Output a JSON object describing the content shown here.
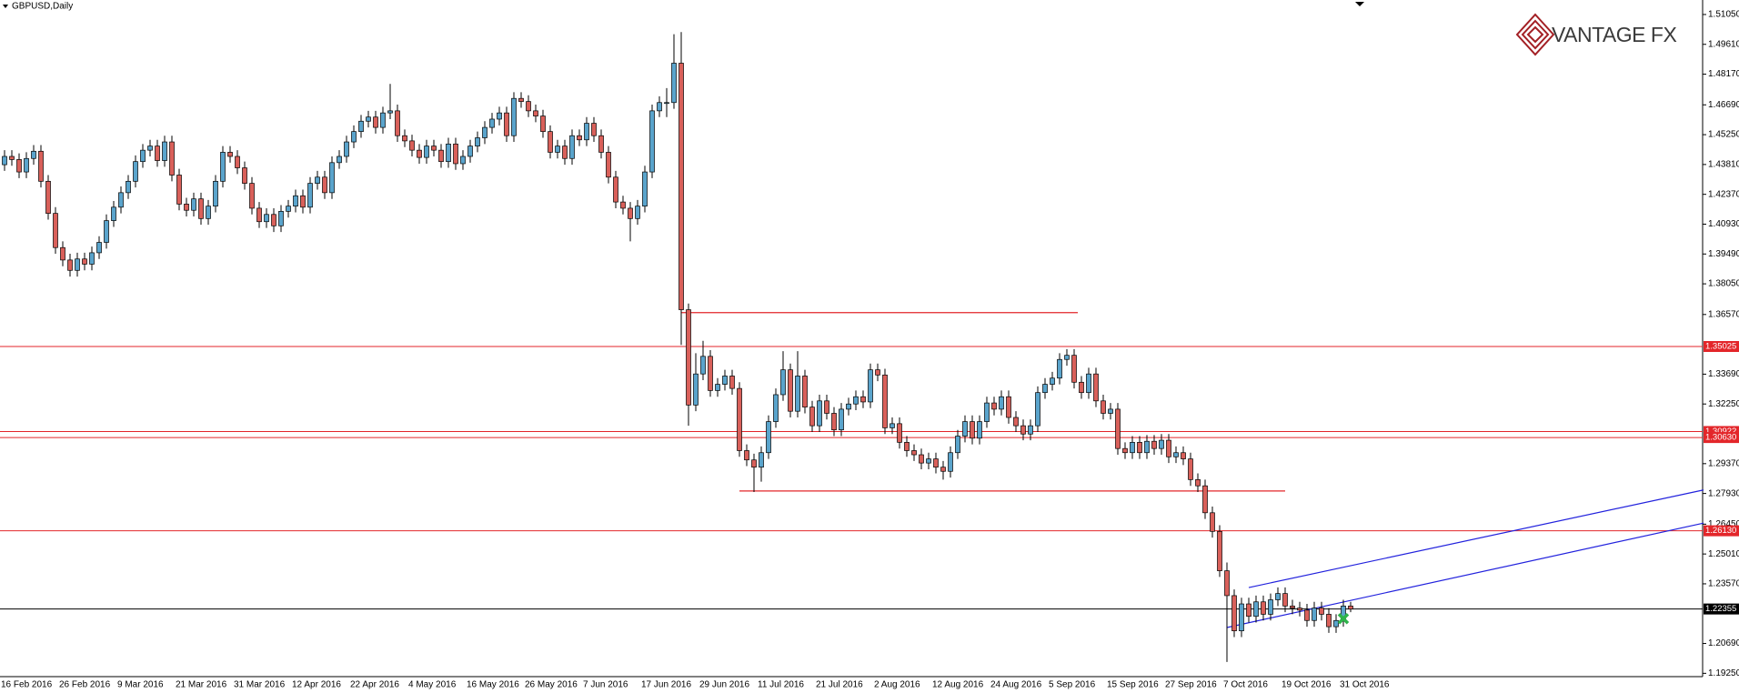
{
  "chart_data": {
    "type": "candlestick",
    "title": "GBPUSD,Daily",
    "brand": "VANTAGE FX",
    "categories": [
      "16 Feb 2016",
      null,
      null,
      null,
      null,
      null,
      null,
      null,
      "26 Feb 2016",
      null,
      null,
      null,
      null,
      null,
      null,
      null,
      "9 Mar 2016",
      null,
      null,
      null,
      null,
      null,
      null,
      null,
      "21 Mar 2016",
      null,
      null,
      null,
      null,
      null,
      null,
      null,
      "31 Mar 2016",
      null,
      null,
      null,
      null,
      null,
      null,
      null,
      "12 Apr 2016",
      null,
      null,
      null,
      null,
      null,
      null,
      null,
      "22 Apr 2016",
      null,
      null,
      null,
      null,
      null,
      null,
      null,
      "4 May 2016",
      null,
      null,
      null,
      null,
      null,
      null,
      null,
      "16 May 2016",
      null,
      null,
      null,
      null,
      null,
      null,
      null,
      "26 May 2016",
      null,
      null,
      null,
      null,
      null,
      null,
      null,
      "7 Jun 2016",
      null,
      null,
      null,
      null,
      null,
      null,
      null,
      "17 Jun 2016",
      null,
      null,
      null,
      null,
      null,
      null,
      null,
      "29 Jun 2016",
      null,
      null,
      null,
      null,
      null,
      null,
      null,
      "11 Jul 2016",
      null,
      null,
      null,
      null,
      null,
      null,
      null,
      "21 Jul 2016",
      null,
      null,
      null,
      null,
      null,
      null,
      null,
      "2 Aug 2016",
      null,
      null,
      null,
      null,
      null,
      null,
      null,
      "12 Aug 2016",
      null,
      null,
      null,
      null,
      null,
      null,
      null,
      "24 Aug 2016",
      null,
      null,
      null,
      null,
      null,
      null,
      null,
      "5 Sep 2016",
      null,
      null,
      null,
      null,
      null,
      null,
      null,
      "15 Sep 2016",
      null,
      null,
      null,
      null,
      null,
      null,
      null,
      "27 Sep 2016",
      null,
      null,
      null,
      null,
      null,
      null,
      null,
      "7 Oct 2016",
      null,
      null,
      null,
      null,
      null,
      null,
      null,
      "19 Oct 2016",
      null,
      null,
      null,
      null,
      null,
      null,
      null,
      "31 Oct 2016",
      null
    ],
    "open": [
      1.438,
      1.442,
      1.4405,
      1.4345,
      1.441,
      1.4445,
      1.43,
      1.4145,
      1.398,
      1.392,
      1.387,
      1.3925,
      1.39,
      1.3955,
      1.4005,
      1.411,
      1.4175,
      1.4245,
      1.43,
      1.4395,
      1.445,
      1.447,
      1.44,
      1.449,
      1.433,
      1.419,
      1.416,
      1.4215,
      1.412,
      1.418,
      1.43,
      1.444,
      1.442,
      1.4365,
      1.429,
      1.417,
      1.4105,
      1.414,
      1.4085,
      1.4155,
      1.418,
      1.423,
      1.4175,
      1.429,
      1.432,
      1.4245,
      1.439,
      1.442,
      1.449,
      1.454,
      1.459,
      1.461,
      1.456,
      1.463,
      1.464,
      1.452,
      1.4495,
      1.445,
      1.4415,
      1.447,
      1.445,
      1.4395,
      1.448,
      1.4385,
      1.442,
      1.447,
      1.451,
      1.456,
      1.46,
      1.463,
      1.452,
      1.47,
      1.4685,
      1.464,
      1.4615,
      1.454,
      1.444,
      1.447,
      1.441,
      1.452,
      1.45,
      1.458,
      1.452,
      1.444,
      1.432,
      1.42,
      1.417,
      1.412,
      1.418,
      1.4345,
      1.464,
      1.468,
      1.468,
      1.487,
      1.368,
      1.322,
      1.337,
      1.3455,
      1.329,
      1.332,
      1.336,
      1.33,
      1.3,
      1.2955,
      1.292,
      1.299,
      1.314,
      1.327,
      1.339,
      1.319,
      1.336,
      1.321,
      1.312,
      1.324,
      1.318,
      1.31,
      1.32,
      1.3225,
      1.326,
      1.3235,
      1.339,
      1.3365,
      1.311,
      1.313,
      1.304,
      1.3,
      1.298,
      1.294,
      1.296,
      1.292,
      1.29,
      1.299,
      1.307,
      1.314,
      1.306,
      1.314,
      1.323,
      1.32,
      1.326,
      1.316,
      1.312,
      1.308,
      1.312,
      1.328,
      1.332,
      1.335,
      1.344,
      1.346,
      1.333,
      1.328,
      1.337,
      1.324,
      1.318,
      1.32,
      1.301,
      1.299,
      1.304,
      1.299,
      1.3045,
      1.301,
      1.305,
      1.297,
      1.299,
      1.296,
      1.286,
      1.283,
      1.27,
      1.261,
      1.242,
      1.23,
      1.213,
      1.226,
      1.22,
      1.227,
      1.221,
      1.228,
      1.231,
      1.225,
      1.224,
      1.223,
      1.218,
      1.224,
      1.221,
      1.215,
      1.218,
      1.225
    ],
    "high": [
      1.445,
      1.445,
      1.4435,
      1.444,
      1.4475,
      1.4475,
      1.433,
      1.4175,
      1.401,
      1.395,
      1.3955,
      1.3955,
      1.3985,
      1.4035,
      1.414,
      1.4205,
      1.4275,
      1.433,
      1.4425,
      1.448,
      1.45,
      1.45,
      1.452,
      1.452,
      1.436,
      1.422,
      1.4245,
      1.4245,
      1.421,
      1.433,
      1.447,
      1.447,
      1.445,
      1.4395,
      1.432,
      1.42,
      1.417,
      1.417,
      1.4185,
      1.421,
      1.426,
      1.426,
      1.432,
      1.435,
      1.435,
      1.442,
      1.445,
      1.452,
      1.457,
      1.462,
      1.464,
      1.464,
      1.466,
      1.477,
      1.467,
      1.455,
      1.4525,
      1.448,
      1.45,
      1.45,
      1.448,
      1.451,
      1.451,
      1.445,
      1.45,
      1.454,
      1.459,
      1.463,
      1.466,
      1.466,
      1.473,
      1.473,
      1.4715,
      1.467,
      1.4645,
      1.457,
      1.45,
      1.45,
      1.455,
      1.455,
      1.461,
      1.461,
      1.455,
      1.447,
      1.435,
      1.423,
      1.42,
      1.421,
      1.4375,
      1.467,
      1.471,
      1.475,
      1.501,
      1.502,
      1.371,
      1.347,
      1.353,
      1.3485,
      1.335,
      1.339,
      1.339,
      1.333,
      1.303,
      1.2985,
      1.302,
      1.317,
      1.33,
      1.348,
      1.342,
      1.348,
      1.339,
      1.324,
      1.327,
      1.327,
      1.321,
      1.323,
      1.3255,
      1.329,
      1.329,
      1.342,
      1.342,
      1.3395,
      1.316,
      1.316,
      1.307,
      1.303,
      1.301,
      1.299,
      1.299,
      1.295,
      1.302,
      1.31,
      1.317,
      1.317,
      1.317,
      1.326,
      1.326,
      1.329,
      1.329,
      1.319,
      1.315,
      1.315,
      1.331,
      1.335,
      1.338,
      1.347,
      1.349,
      1.349,
      1.336,
      1.34,
      1.34,
      1.327,
      1.323,
      1.323,
      1.304,
      1.307,
      1.307,
      1.3075,
      1.3075,
      1.308,
      1.308,
      1.302,
      1.302,
      1.299,
      1.289,
      1.286,
      1.273,
      1.264,
      1.246,
      1.233,
      1.229,
      1.229,
      1.23,
      1.23,
      1.231,
      1.234,
      1.234,
      1.228,
      1.227,
      1.226,
      1.227,
      1.227,
      1.224,
      1.221,
      1.228,
      1.227
    ],
    "low": [
      1.435,
      1.4375,
      1.4315,
      1.4315,
      1.438,
      1.427,
      1.4115,
      1.395,
      1.389,
      1.384,
      1.384,
      1.387,
      1.387,
      1.3925,
      1.3975,
      1.408,
      1.4145,
      1.4215,
      1.427,
      1.4365,
      1.442,
      1.437,
      1.437,
      1.43,
      1.416,
      1.413,
      1.413,
      1.409,
      1.409,
      1.415,
      1.427,
      1.439,
      1.4335,
      1.426,
      1.414,
      1.4075,
      1.4075,
      1.4055,
      1.4055,
      1.4125,
      1.415,
      1.4145,
      1.4145,
      1.426,
      1.4215,
      1.4215,
      1.436,
      1.439,
      1.446,
      1.451,
      1.456,
      1.453,
      1.453,
      1.46,
      1.449,
      1.4465,
      1.442,
      1.4385,
      1.4385,
      1.442,
      1.4365,
      1.4365,
      1.4355,
      1.4355,
      1.439,
      1.444,
      1.448,
      1.453,
      1.457,
      1.449,
      1.449,
      1.4655,
      1.461,
      1.4585,
      1.451,
      1.441,
      1.441,
      1.438,
      1.438,
      1.447,
      1.447,
      1.449,
      1.441,
      1.429,
      1.417,
      1.414,
      1.401,
      1.409,
      1.415,
      1.4315,
      1.461,
      1.461,
      1.465,
      1.351,
      1.312,
      1.319,
      1.334,
      1.326,
      1.326,
      1.329,
      1.327,
      1.297,
      1.2925,
      1.28,
      1.285,
      1.296,
      1.311,
      1.324,
      1.316,
      1.316,
      1.318,
      1.309,
      1.309,
      1.315,
      1.307,
      1.307,
      1.317,
      1.3195,
      1.3205,
      1.3205,
      1.3335,
      1.308,
      1.308,
      1.301,
      1.297,
      1.295,
      1.291,
      1.291,
      1.289,
      1.286,
      1.287,
      1.296,
      1.304,
      1.303,
      1.303,
      1.311,
      1.317,
      1.317,
      1.313,
      1.309,
      1.305,
      1.305,
      1.309,
      1.325,
      1.329,
      1.332,
      1.341,
      1.33,
      1.325,
      1.325,
      1.321,
      1.315,
      1.315,
      1.298,
      1.296,
      1.296,
      1.296,
      1.296,
      1.298,
      1.298,
      1.294,
      1.294,
      1.293,
      1.283,
      1.28,
      1.267,
      1.258,
      1.239,
      1.198,
      1.21,
      1.21,
      1.217,
      1.217,
      1.218,
      1.218,
      1.225,
      1.222,
      1.221,
      1.22,
      1.215,
      1.215,
      1.218,
      1.212,
      1.212,
      1.215,
      1.222
    ],
    "close": [
      1.442,
      1.4405,
      1.4345,
      1.441,
      1.4445,
      1.43,
      1.4145,
      1.398,
      1.392,
      1.387,
      1.3925,
      1.39,
      1.3955,
      1.4005,
      1.411,
      1.4175,
      1.4245,
      1.43,
      1.4395,
      1.445,
      1.447,
      1.44,
      1.449,
      1.433,
      1.419,
      1.416,
      1.4215,
      1.412,
      1.418,
      1.43,
      1.444,
      1.442,
      1.4365,
      1.429,
      1.417,
      1.4105,
      1.414,
      1.4085,
      1.4155,
      1.418,
      1.423,
      1.4175,
      1.429,
      1.432,
      1.4245,
      1.439,
      1.442,
      1.449,
      1.454,
      1.459,
      1.461,
      1.456,
      1.463,
      1.464,
      1.452,
      1.4495,
      1.445,
      1.4415,
      1.447,
      1.445,
      1.4395,
      1.448,
      1.4385,
      1.442,
      1.447,
      1.451,
      1.456,
      1.46,
      1.463,
      1.452,
      1.47,
      1.4685,
      1.464,
      1.4615,
      1.454,
      1.444,
      1.447,
      1.441,
      1.452,
      1.45,
      1.458,
      1.452,
      1.444,
      1.432,
      1.42,
      1.417,
      1.412,
      1.418,
      1.4345,
      1.464,
      1.468,
      1.468,
      1.487,
      1.368,
      1.322,
      1.337,
      1.3455,
      1.329,
      1.332,
      1.336,
      1.33,
      1.3,
      1.2955,
      1.292,
      1.299,
      1.314,
      1.327,
      1.339,
      1.319,
      1.336,
      1.321,
      1.312,
      1.324,
      1.318,
      1.31,
      1.32,
      1.3225,
      1.326,
      1.3235,
      1.339,
      1.3365,
      1.311,
      1.313,
      1.304,
      1.3,
      1.298,
      1.294,
      1.296,
      1.292,
      1.29,
      1.299,
      1.307,
      1.314,
      1.306,
      1.314,
      1.323,
      1.32,
      1.326,
      1.316,
      1.312,
      1.308,
      1.312,
      1.328,
      1.332,
      1.335,
      1.344,
      1.346,
      1.333,
      1.328,
      1.337,
      1.324,
      1.318,
      1.32,
      1.301,
      1.299,
      1.304,
      1.299,
      1.3045,
      1.301,
      1.305,
      1.297,
      1.299,
      1.296,
      1.286,
      1.283,
      1.27,
      1.261,
      1.242,
      1.23,
      1.213,
      1.226,
      1.22,
      1.227,
      1.221,
      1.228,
      1.231,
      1.225,
      1.224,
      1.223,
      1.218,
      1.224,
      1.221,
      1.215,
      1.218,
      1.225,
      1.2235
    ],
    "up_color": "#5aa4cc",
    "down_color": "#d9605a",
    "ylim": [
      1.1909,
      1.5175
    ],
    "yticks": [
      {
        "value": 1.5105,
        "label": "1.51050"
      },
      {
        "value": 1.4961,
        "label": "1.49610"
      },
      {
        "value": 1.4817,
        "label": "1.48170"
      },
      {
        "value": 1.4669,
        "label": "1.46690"
      },
      {
        "value": 1.4525,
        "label": "1.45250"
      },
      {
        "value": 1.4381,
        "label": "1.43810"
      },
      {
        "value": 1.4237,
        "label": "1.42370"
      },
      {
        "value": 1.4093,
        "label": "1.40930"
      },
      {
        "value": 1.3949,
        "label": "1.39490"
      },
      {
        "value": 1.3805,
        "label": "1.38050"
      },
      {
        "value": 1.3657,
        "label": "1.36570"
      },
      {
        "value": 1.3369,
        "label": "1.33690"
      },
      {
        "value": 1.3225,
        "label": "1.32250"
      },
      {
        "value": 1.2937,
        "label": "1.29370"
      },
      {
        "value": 1.2793,
        "label": "1.27930"
      },
      {
        "value": 1.2645,
        "label": "1.26450"
      },
      {
        "value": 1.2501,
        "label": "1.25010"
      },
      {
        "value": 1.2357,
        "label": "1.23570"
      },
      {
        "value": 1.2069,
        "label": "1.20690"
      },
      {
        "value": 1.1925,
        "label": "1.19250"
      }
    ],
    "levels": [
      {
        "value": 1.35025,
        "label": "1.35025",
        "color": "#e3262a"
      },
      {
        "value": 1.30922,
        "label": "1.30922",
        "color": "#e3262a"
      },
      {
        "value": 1.3063,
        "label": "1.30630",
        "color": "#e3262a"
      },
      {
        "value": 1.2613,
        "label": "1.26130",
        "color": "#e3262a"
      },
      {
        "value": 1.22355,
        "label": "1.22355",
        "color": "#000000"
      }
    ],
    "segments": [
      {
        "x": [
          93,
          147.5
        ],
        "y": 1.3666,
        "color": "#e3262a"
      },
      {
        "x": [
          101,
          176
        ],
        "y": 1.2805,
        "color": "#e3262a"
      }
    ],
    "trendlines": [
      {
        "x": [
          171,
          233.5
        ],
        "y": [
          1.2339,
          1.281
        ],
        "color": "#2222dd"
      },
      {
        "x": [
          168,
          233.5
        ],
        "y": [
          1.2146,
          1.265
        ],
        "color": "#2222dd"
      }
    ],
    "marker": {
      "x": 184,
      "y": 1.2189,
      "color": "#2db34a"
    }
  }
}
